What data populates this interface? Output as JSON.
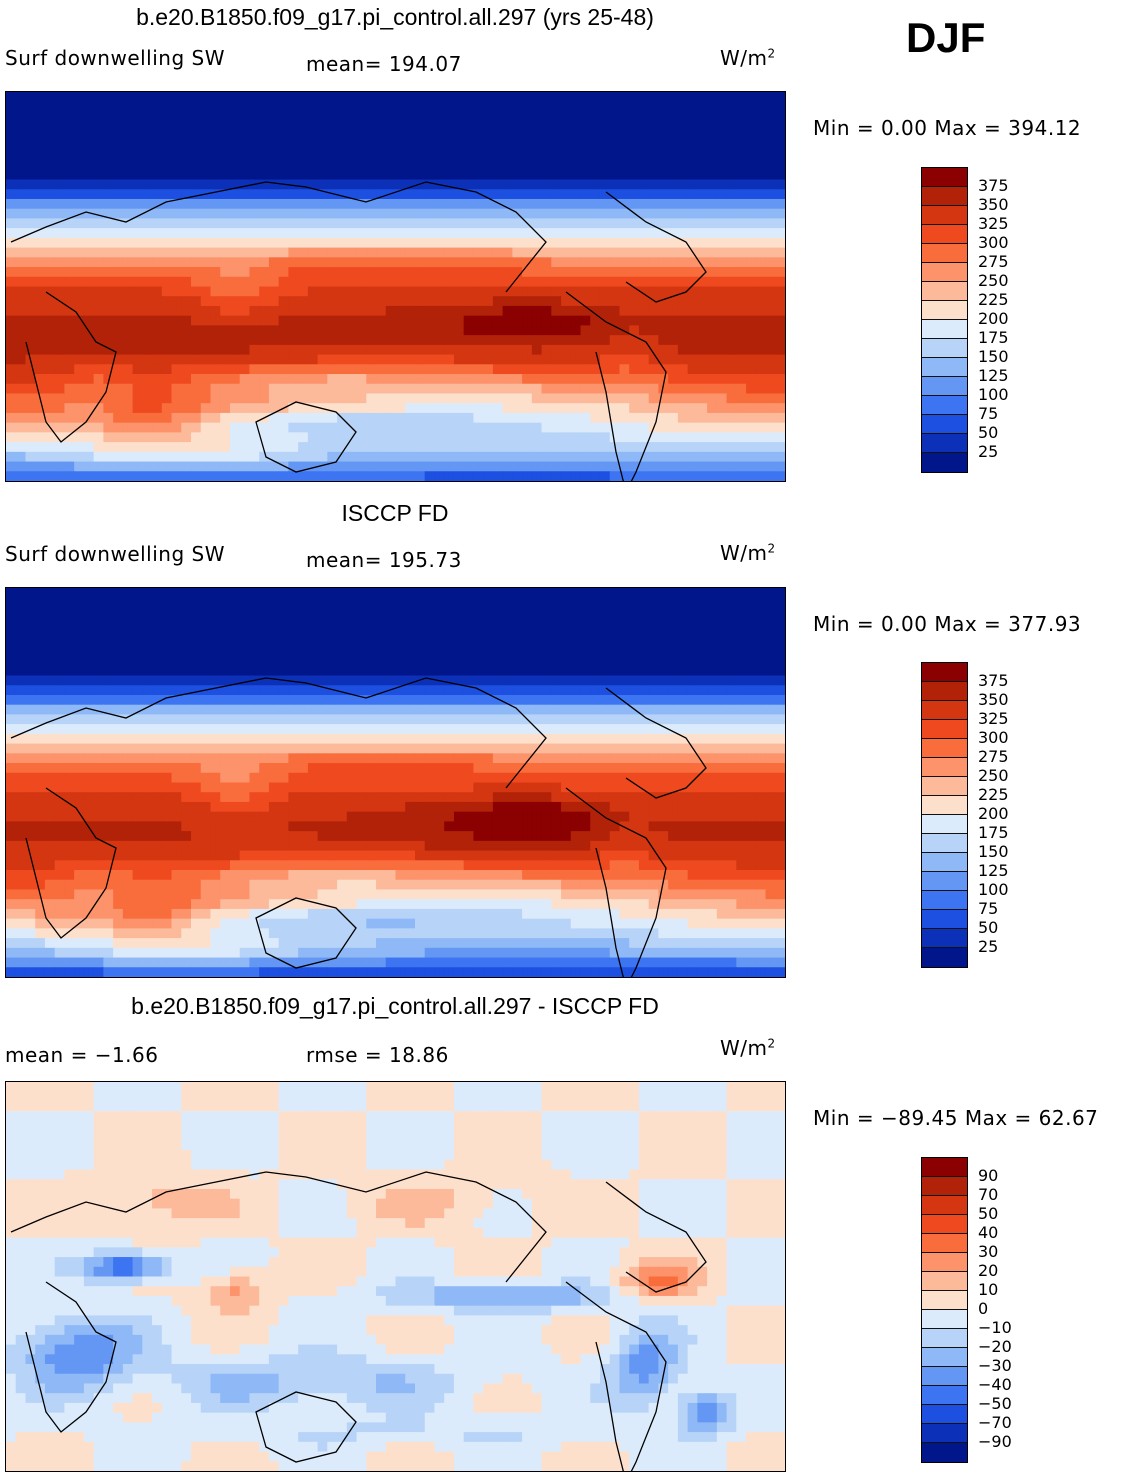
{
  "season": "DJF",
  "panels": [
    {
      "title": "b.e20.B1850.f09_g17.pi_control.all.297 (yrs 25-48)",
      "left_label": "Surf downwelling SW",
      "stat": "mean=  194.07",
      "units": "W/m",
      "units_sup": "2",
      "minmax": "Min =    0.00 Max  = 394.12",
      "colorbar_levels": [
        "375",
        "350",
        "325",
        "300",
        "275",
        "250",
        "225",
        "200",
        "175",
        "150",
        "125",
        "100",
        "75",
        "50",
        "25"
      ],
      "colorbar_colors": [
        "#8b0000",
        "#b22208",
        "#d33611",
        "#ef4a1f",
        "#f96d3d",
        "#fc936b",
        "#fcba9b",
        "#fde0cc",
        "#dcebfb",
        "#b7d4f8",
        "#8fb8f7",
        "#6497f4",
        "#3c74f2",
        "#1d4fe0",
        "#0c30b8",
        "#00168a"
      ],
      "field": "model"
    },
    {
      "title": "ISCCP FD",
      "left_label": "Surf downwelling SW",
      "stat": "mean=  195.73",
      "units": "W/m",
      "units_sup": "2",
      "minmax": "Min =    0.00 Max  = 377.93",
      "colorbar_levels": [
        "375",
        "350",
        "325",
        "300",
        "275",
        "250",
        "225",
        "200",
        "175",
        "150",
        "125",
        "100",
        "75",
        "50",
        "25"
      ],
      "colorbar_colors": [
        "#8b0000",
        "#b22208",
        "#d33611",
        "#ef4a1f",
        "#f96d3d",
        "#fc936b",
        "#fcba9b",
        "#fde0cc",
        "#dcebfb",
        "#b7d4f8",
        "#8fb8f7",
        "#6497f4",
        "#3c74f2",
        "#1d4fe0",
        "#0c30b8",
        "#00168a"
      ],
      "field": "obs"
    },
    {
      "title": "b.e20.B1850.f09_g17.pi_control.all.297 - ISCCP FD",
      "left_label": "mean =   −1.66",
      "stat": "rmse =   18.86",
      "units": "W/m",
      "units_sup": "2",
      "minmax": "Min = −89.45 Max =   62.67",
      "colorbar_levels": [
        "90",
        "70",
        "50",
        "40",
        "30",
        "20",
        "10",
        "0",
        "−10",
        "−20",
        "−30",
        "−40",
        "−50",
        "−70",
        "−90"
      ],
      "colorbar_colors": [
        "#8b0000",
        "#b22208",
        "#d33611",
        "#ef4a1f",
        "#f96d3d",
        "#fc936b",
        "#fcba9b",
        "#fde0cc",
        "#dcebfb",
        "#b7d4f8",
        "#8fb8f7",
        "#6497f4",
        "#3c74f2",
        "#1d4fe0",
        "#0c30b8",
        "#00168a"
      ],
      "field": "diff"
    }
  ]
}
